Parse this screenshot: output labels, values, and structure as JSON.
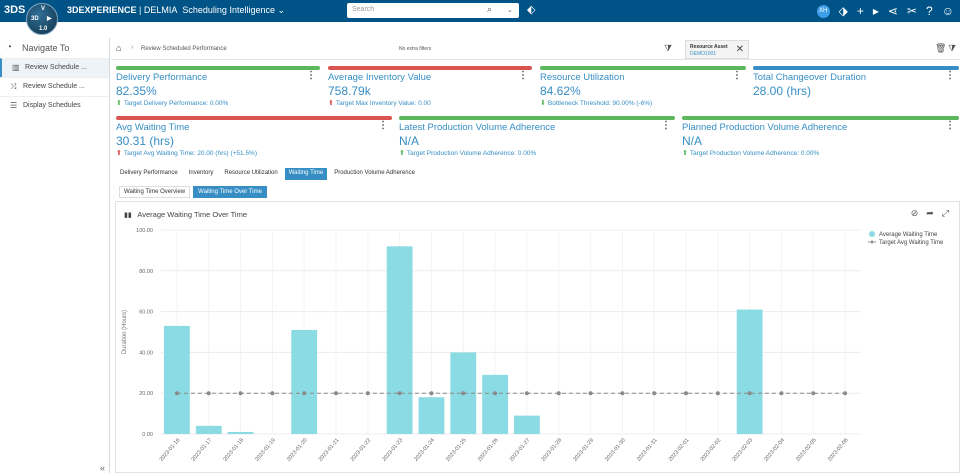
{
  "app": {
    "brand_bold": "3DEXPERIENCE",
    "brand_sep": " | ",
    "brand_app": "DELMIA",
    "brand_module": "Scheduling Intelligence",
    "brand_caret": "⌄",
    "ds_logo": "3DS",
    "compass_top": "V",
    "compass_left": "3D",
    "compass_right": "▶",
    "compass_bottom": "1.0",
    "search_placeholder": "Search",
    "user_initials": "XH"
  },
  "sidebar": {
    "title": "Navigate To",
    "items": [
      {
        "label": "Review Schedule ..."
      },
      {
        "label": "Review Schedule ..."
      },
      {
        "label": "Display Schedules"
      }
    ],
    "collapse": "«"
  },
  "breadcrumb": {
    "current": "Review Scheduled Performance",
    "no_filters": "No extra filters",
    "chip_key": "Resource Asset",
    "chip_value": "DEMO1001"
  },
  "kpis": [
    {
      "title": "Delivery Performance",
      "value": "82.35%",
      "arrow": "⬆",
      "sub": "Target Delivery Performance: 0.00%",
      "color": "#5cb85c"
    },
    {
      "title": "Average Inventory Value",
      "value": "758.79k",
      "arrow": "⬆",
      "sub": "Target Max Inventory Value: 0.00",
      "color": "#d9534f"
    },
    {
      "title": "Resource Utilization",
      "value": "84.62%",
      "arrow": "⬇",
      "sub": "Bottleneck Threshold: 90.00% (-6%)",
      "color": "#5cb85c"
    },
    {
      "title": "Total Changeover Duration",
      "value": "28.00 (hrs)",
      "arrow": "",
      "sub": "",
      "color": "#368ec4"
    },
    {
      "title": "Avg Waiting Time",
      "value": "30.31 (hrs)",
      "arrow": "⬆",
      "sub": "Target Avg Waiting Time: 20.00 (hrs) (+51.5%)",
      "color": "#d9534f"
    },
    {
      "title": "Latest Production Volume Adherence",
      "value": "N/A",
      "arrow": "⬆",
      "sub": "Target Production Volume Adherence: 0.00%",
      "color": "#5cb85c"
    },
    {
      "title": "Planned Production Volume Adherence",
      "value": "N/A",
      "arrow": "⬆",
      "sub": "Target Production Volume Adherence: 0.00%",
      "color": "#5cb85c"
    }
  ],
  "tabs": [
    "Delivery Performance",
    "Inventory",
    "Resource Utilization",
    "Waiting Time",
    "Production Volume Adherence"
  ],
  "active_tab": 3,
  "subtabs": [
    "Waiting Time Overview",
    "Waiting Time Over Time"
  ],
  "active_subtab": 1,
  "chart_panel": {
    "title": "Average Waiting Time Over Time"
  },
  "chart_data": {
    "type": "bar",
    "title": "Average Waiting Time Over Time",
    "ylabel": "Duration (Hours)",
    "xlabel": "",
    "ylim": [
      0,
      100
    ],
    "yticks": [
      "0.00",
      "20.00",
      "40.00",
      "60.00",
      "80.00",
      "100.00"
    ],
    "legend_position": "top-right",
    "grid": true,
    "categories": [
      "2023-01-16",
      "2023-01-17",
      "2023-01-18",
      "2023-01-19",
      "2023-01-20",
      "2023-01-21",
      "2023-01-22",
      "2023-01-23",
      "2023-01-24",
      "2023-01-25",
      "2023-01-26",
      "2023-01-27",
      "2023-01-28",
      "2023-01-29",
      "2023-01-30",
      "2023-01-31",
      "2023-02-01",
      "2023-02-02",
      "2023-02-03",
      "2023-02-04",
      "2023-02-05",
      "2023-02-06"
    ],
    "series": [
      {
        "name": "Average Waiting Time",
        "kind": "bar",
        "color": "#8adbe3",
        "values": [
          53,
          4,
          1,
          0,
          51,
          0,
          0,
          92,
          18,
          40,
          29,
          9,
          0,
          0,
          0,
          0,
          0,
          0,
          61,
          0,
          0,
          0
        ]
      },
      {
        "name": "Target Avg Waiting Time",
        "kind": "line",
        "color": "#8a8a8a",
        "values": [
          20,
          20,
          20,
          20,
          20,
          20,
          20,
          20,
          20,
          20,
          20,
          20,
          20,
          20,
          20,
          20,
          20,
          20,
          20,
          20,
          20,
          20
        ]
      }
    ]
  }
}
